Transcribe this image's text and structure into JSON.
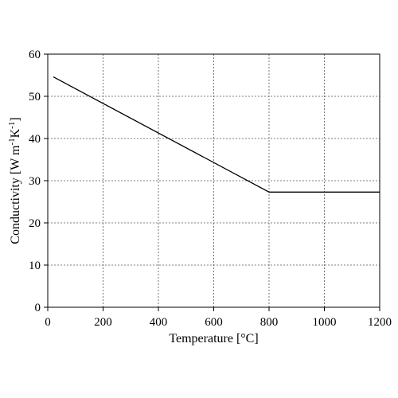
{
  "chart_data": {
    "type": "line",
    "title": "",
    "xlabel": "Temperature [°C]",
    "ylabel_parts": [
      "Conductivity [W m",
      "-1",
      "K",
      "-1",
      "]"
    ],
    "xlim": [
      0,
      1200
    ],
    "ylim": [
      0,
      60
    ],
    "xticks": [
      0,
      200,
      400,
      600,
      800,
      1000,
      1200
    ],
    "yticks": [
      0,
      10,
      20,
      30,
      40,
      50,
      60
    ],
    "grid": true,
    "series": [
      {
        "x": [
          20,
          800,
          1200
        ],
        "y": [
          54.6,
          27.3,
          27.3
        ]
      }
    ]
  }
}
